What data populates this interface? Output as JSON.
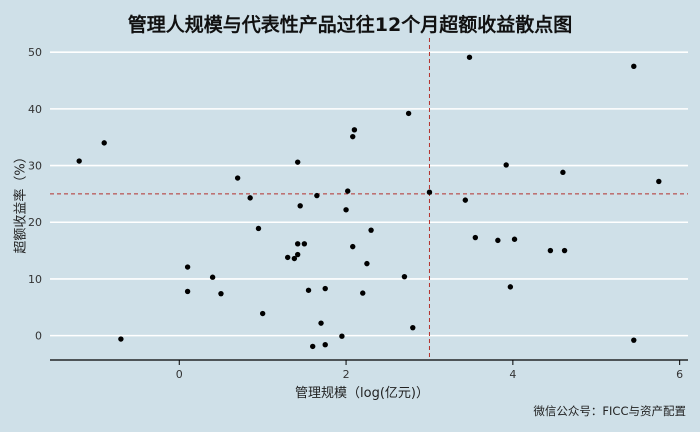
{
  "chart_data": {
    "type": "scatter",
    "title": "管理人规模与代表性产品过往12个月超额收益散点图",
    "xlabel": "管理规模（log(亿元)）",
    "ylabel": "超额收益率（%）",
    "xlim": [
      -1.55,
      6.1
    ],
    "ylim": [
      -4.3,
      52.5
    ],
    "x_ticks": [
      0,
      2,
      4,
      6
    ],
    "y_ticks": [
      0,
      10,
      20,
      30,
      40,
      50
    ],
    "grid": "horizontal",
    "reference_lines": {
      "x": 3.0,
      "y": 25.0
    },
    "series": [
      {
        "points": [
          [
            -1.2,
            30.8
          ],
          [
            -0.9,
            34.0
          ],
          [
            -0.7,
            -0.6
          ],
          [
            0.1,
            12.1
          ],
          [
            0.1,
            7.8
          ],
          [
            0.4,
            10.3
          ],
          [
            0.5,
            7.4
          ],
          [
            0.7,
            27.8
          ],
          [
            0.85,
            24.3
          ],
          [
            0.95,
            18.9
          ],
          [
            1.0,
            3.9
          ],
          [
            1.3,
            13.8
          ],
          [
            1.38,
            13.6
          ],
          [
            1.42,
            14.3
          ],
          [
            1.42,
            16.2
          ],
          [
            1.42,
            30.6
          ],
          [
            1.45,
            22.9
          ],
          [
            1.5,
            16.2
          ],
          [
            1.55,
            8.0
          ],
          [
            1.6,
            -1.9
          ],
          [
            1.65,
            24.7
          ],
          [
            1.7,
            2.2
          ],
          [
            1.75,
            8.3
          ],
          [
            1.75,
            -1.6
          ],
          [
            1.95,
            -0.1
          ],
          [
            2.0,
            22.2
          ],
          [
            2.02,
            25.5
          ],
          [
            2.08,
            35.1
          ],
          [
            2.08,
            15.7
          ],
          [
            2.1,
            36.3
          ],
          [
            2.2,
            7.5
          ],
          [
            2.25,
            12.7
          ],
          [
            2.3,
            18.6
          ],
          [
            2.7,
            10.4
          ],
          [
            2.75,
            39.2
          ],
          [
            2.8,
            1.4
          ],
          [
            3.0,
            25.3
          ],
          [
            3.43,
            23.9
          ],
          [
            3.48,
            49.1
          ],
          [
            3.55,
            17.3
          ],
          [
            3.82,
            16.8
          ],
          [
            3.92,
            30.1
          ],
          [
            3.97,
            8.6
          ],
          [
            4.02,
            17.0
          ],
          [
            4.45,
            15.0
          ],
          [
            4.6,
            28.8
          ],
          [
            4.62,
            15.0
          ],
          [
            5.45,
            -0.8
          ],
          [
            5.45,
            47.5
          ],
          [
            5.75,
            27.2
          ]
        ]
      }
    ]
  },
  "footer": "微信公众号：FICC与资产配置",
  "colors": {
    "background": "#cfe0e8",
    "grid": "#ffffff",
    "point": "#000000",
    "reference_line": "#b3302c",
    "axis": "#000000"
  }
}
